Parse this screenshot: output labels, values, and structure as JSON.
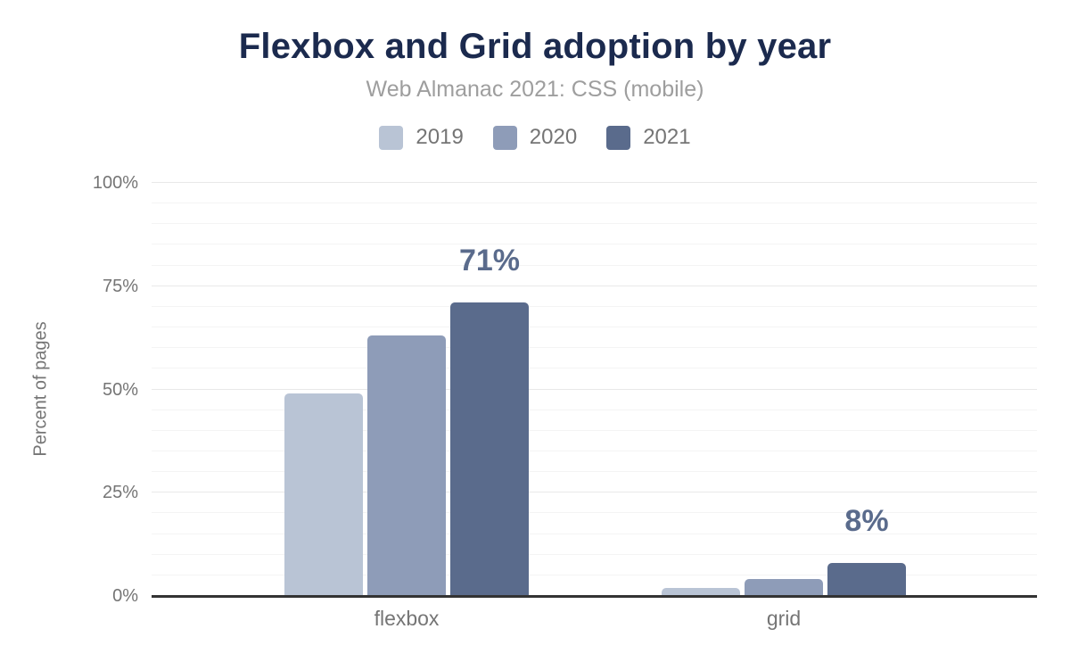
{
  "chart_data": {
    "type": "bar",
    "title": "Flexbox and Grid adoption by year",
    "subtitle": "Web Almanac 2021: CSS (mobile)",
    "ylabel": "Percent of pages",
    "ylim": [
      0,
      100
    ],
    "ytick_values": [
      0,
      25,
      50,
      75,
      100
    ],
    "ytick_labels": [
      "0%",
      "25%",
      "50%",
      "75%",
      "100%"
    ],
    "grid": {
      "minor_step": 5,
      "major_step": 25,
      "orientation": "horizontal"
    },
    "legend_position": "top",
    "categories": [
      "flexbox",
      "grid"
    ],
    "series": [
      {
        "name": "2019",
        "color": "#b9c4d5",
        "values": [
          49,
          2
        ]
      },
      {
        "name": "2020",
        "color": "#8e9cb8",
        "values": [
          63,
          4
        ]
      },
      {
        "name": "2021",
        "color": "#5a6b8c",
        "values": [
          71,
          8
        ],
        "data_labels": [
          "71%",
          "8%"
        ]
      }
    ]
  },
  "theme": {
    "background": "#ffffff",
    "title_color": "#1b2a4e",
    "subtitle_color": "#9e9e9e",
    "axis_text_color": "#757575",
    "axis_line_color": "#333333",
    "gridline_minor": "#f4f4f4",
    "gridline_major": "#e9e9e9",
    "value_label_color": "#5a6b8c"
  }
}
